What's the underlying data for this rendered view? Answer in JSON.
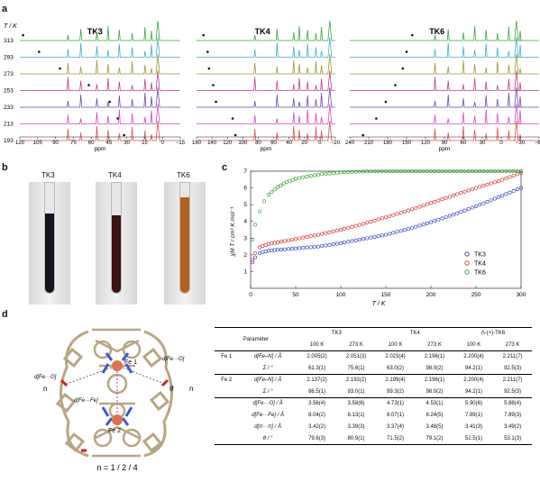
{
  "panels": {
    "a": "a",
    "b": "b",
    "c": "c",
    "d": "d"
  },
  "nmr": {
    "temp_axis_label": "T / K",
    "temperatures": [
      "313",
      "293",
      "273",
      "253",
      "233",
      "213",
      "193"
    ],
    "trace_colors": [
      "#3aa83a",
      "#3fb0c8",
      "#9a9a30",
      "#c23a8a",
      "#6a4ab0",
      "#d848c0",
      "#e05050"
    ],
    "spectra": [
      {
        "name": "TK3",
        "ticks": [
          "120",
          "105",
          "90",
          "75",
          "60",
          "45",
          "30",
          "15",
          "0",
          "−15"
        ],
        "xlabel": "ppm"
      },
      {
        "name": "TK4",
        "ticks": [
          "160",
          "140",
          "120",
          "100",
          "80",
          "60",
          "40",
          "20",
          "0",
          "−20"
        ],
        "xlabel": "ppm"
      },
      {
        "name": "TK6",
        "ticks": [
          "240",
          "210",
          "180",
          "150",
          "120",
          "90",
          "60",
          "30",
          "0",
          "−30",
          "−60"
        ],
        "xlabel": "ppm"
      }
    ]
  },
  "tubes": [
    {
      "label": "TK3",
      "color": "#151520"
    },
    {
      "label": "TK4",
      "color": "#3a1210"
    },
    {
      "label": "TK6",
      "color": "#b0621e"
    }
  ],
  "chart_data": {
    "type": "scatter",
    "xlabel": "T / K",
    "ylabel": "χM T / cm³ K mol⁻¹",
    "xlim": [
      0,
      300
    ],
    "ylim": [
      0,
      7
    ],
    "xticks": [
      0,
      50,
      100,
      150,
      200,
      250,
      300
    ],
    "yticks": [
      1,
      2,
      3,
      4,
      5,
      6,
      7
    ],
    "legend_position": "right",
    "series": [
      {
        "name": "TK3",
        "color": "#2233bb",
        "x": [
          2,
          5,
          10,
          20,
          30,
          50,
          75,
          100,
          125,
          150,
          175,
          200,
          225,
          250,
          275,
          300
        ],
        "y": [
          1.55,
          1.85,
          2.1,
          2.25,
          2.3,
          2.38,
          2.5,
          2.7,
          2.95,
          3.2,
          3.55,
          3.95,
          4.4,
          4.9,
          5.45,
          6.0
        ]
      },
      {
        "name": "TK4",
        "color": "#cc2222",
        "x": [
          2,
          5,
          10,
          20,
          30,
          50,
          75,
          100,
          125,
          150,
          175,
          200,
          225,
          250,
          275,
          300
        ],
        "y": [
          1.7,
          2.1,
          2.45,
          2.65,
          2.75,
          2.95,
          3.2,
          3.5,
          3.85,
          4.25,
          4.65,
          5.1,
          5.55,
          6.0,
          6.4,
          6.9
        ]
      },
      {
        "name": "TK6",
        "color": "#229922",
        "x": [
          2,
          5,
          10,
          15,
          20,
          30,
          40,
          50,
          75,
          100,
          125,
          150,
          175,
          200,
          225,
          250,
          275,
          300
        ],
        "y": [
          2.9,
          3.8,
          4.6,
          5.2,
          5.6,
          6.05,
          6.35,
          6.55,
          6.8,
          6.93,
          6.98,
          7.0,
          7.0,
          7.0,
          7.0,
          7.0,
          7.0,
          7.0
        ]
      }
    ]
  },
  "structure": {
    "labels": {
      "fe1": "Fe 1",
      "fe2": "Fe 2",
      "d_left": "d[Fe···O]",
      "d_right": "d[Fe···O]",
      "d_center": "d[Fe···Fe]",
      "theta": "θ",
      "n_left": "n",
      "n_right": "n"
    },
    "caption": "n = 1 / 2 / 4"
  },
  "table": {
    "header_param": "Parameter",
    "compounds": [
      "TK3",
      "TK4",
      "Λ-(+)-TK6"
    ],
    "temps": [
      "100 K",
      "273 K",
      "100 K",
      "273 K",
      "100 K",
      "273 K"
    ],
    "rows": [
      {
        "group": "Fe 1",
        "label": "d[Fe–N] / Å",
        "values": [
          "2.005(2)",
          "2.051(3)",
          "2.023(4)",
          "2.196(1)",
          "2.200(4)",
          "2.211(7)"
        ]
      },
      {
        "group": "",
        "label": "Σ / °",
        "values": [
          "61.3(1)",
          "75.6(1)",
          "63.0(2)",
          "98.0(2)",
          "94.2(1)",
          "92.5(3)"
        ]
      },
      {
        "group": "Fe 2",
        "label": "d[Fe–N] / Å",
        "values": [
          "2.137(2)",
          "2.192(2)",
          "2.199(4)",
          "2.196(1)",
          "2.200(4)",
          "2.211(7)"
        ]
      },
      {
        "group": "",
        "label": "Σ / °",
        "values": [
          "86.5(1)",
          "93.0(1)",
          "99.3(2)",
          "98.0(2)",
          "94.2(1)",
          "92.5(3)"
        ]
      },
      {
        "group": "",
        "label": "d[Fe···O] / Å",
        "values": [
          "3.56(4)",
          "3.58(6)",
          "4.73(1)",
          "4.53(1)",
          "5.90(6)",
          "5.88(4)"
        ]
      },
      {
        "group": "",
        "label": "d[Fe···Fe] / Å",
        "values": [
          "8.04(2)",
          "8.13(1)",
          "8.07(1)",
          "8.24(5)",
          "7.89(1)",
          "7.89(3)"
        ]
      },
      {
        "group": "",
        "label": "d[π···π] / Å",
        "values": [
          "3.42(2)",
          "3.39(3)",
          "3.37(4)",
          "3.48(5)",
          "3.41(3)",
          "3.49(2)"
        ]
      },
      {
        "group": "",
        "label": "θ / °",
        "values": [
          "79.6(3)",
          "80.9(1)",
          "71.5(2)",
          "79.1(2)",
          "51.5(1)",
          "53.1(3)"
        ]
      }
    ]
  }
}
